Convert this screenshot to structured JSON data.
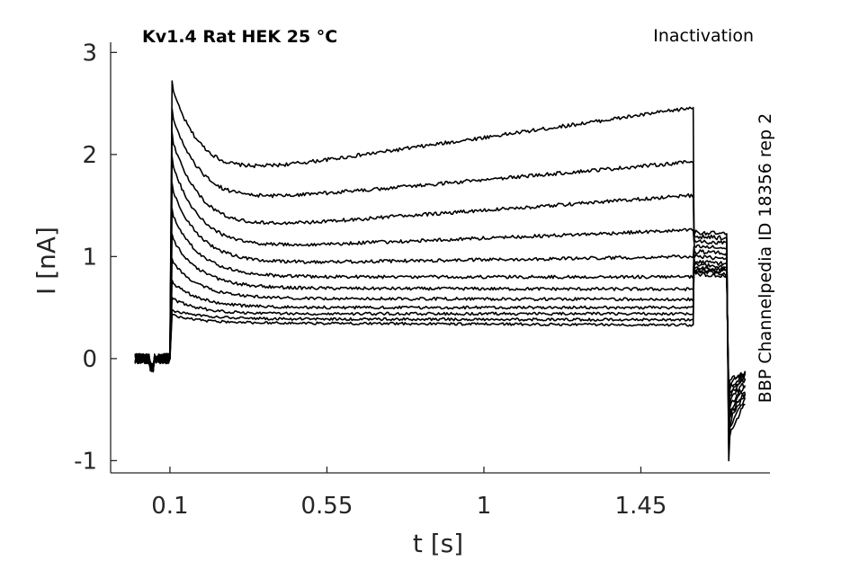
{
  "chart_data": {
    "type": "line",
    "title": "Kv1.4  Rat  HEK  25 °C",
    "annotation_right": "Inactivation",
    "annotation_vertical": "BBP Channelpedia ID 18356 rep 2",
    "xlabel": "t [s]",
    "ylabel": "I [nA]",
    "xlim": [
      -0.07,
      1.82
    ],
    "ylim": [
      -1.12,
      3.1
    ],
    "xticks": [
      0.1,
      0.55,
      1,
      1.45
    ],
    "xtick_labels": [
      "0.1",
      "0.55",
      "1",
      "1.45"
    ],
    "yticks": [
      -1,
      0,
      1,
      2,
      3
    ],
    "ytick_labels": [
      "-1",
      "0",
      "1",
      "2",
      "3"
    ],
    "grid": false,
    "line_color": "#000000",
    "protocol": {
      "baseline_start": 0.0,
      "step_on": 0.1,
      "step_off": 1.6,
      "tail_end": 1.7,
      "recovery_end": 1.75
    },
    "series": [
      {
        "peak": 2.72,
        "min_level": 1.8,
        "end_level": 2.46,
        "tail_level": 1.24,
        "tail_dip": -1.0
      },
      {
        "peak": 2.45,
        "min_level": 1.53,
        "end_level": 1.93,
        "tail_level": 1.2,
        "tail_dip": -0.9
      },
      {
        "peak": 2.22,
        "min_level": 1.27,
        "end_level": 1.6,
        "tail_level": 1.15,
        "tail_dip": -0.82
      },
      {
        "peak": 1.98,
        "min_level": 1.08,
        "end_level": 1.26,
        "tail_level": 1.1,
        "tail_dip": -0.75
      },
      {
        "peak": 1.72,
        "min_level": 0.93,
        "end_level": 1.0,
        "tail_level": 1.05,
        "tail_dip": -0.68
      },
      {
        "peak": 1.47,
        "min_level": 0.8,
        "end_level": 0.8,
        "tail_level": 1.0,
        "tail_dip": -0.62
      },
      {
        "peak": 1.22,
        "min_level": 0.69,
        "end_level": 0.68,
        "tail_level": 0.95,
        "tail_dip": -0.55
      },
      {
        "peak": 0.98,
        "min_level": 0.59,
        "end_level": 0.58,
        "tail_level": 0.92,
        "tail_dip": -0.48
      },
      {
        "peak": 0.77,
        "min_level": 0.5,
        "end_level": 0.5,
        "tail_level": 0.89,
        "tail_dip": -0.42
      },
      {
        "peak": 0.6,
        "min_level": 0.44,
        "end_level": 0.44,
        "tail_level": 0.87,
        "tail_dip": -0.37
      },
      {
        "peak": 0.48,
        "min_level": 0.39,
        "end_level": 0.38,
        "tail_level": 0.85,
        "tail_dip": -0.33
      },
      {
        "peak": 0.43,
        "min_level": 0.35,
        "end_level": 0.33,
        "tail_level": 0.83,
        "tail_dip": -0.3
      }
    ]
  }
}
